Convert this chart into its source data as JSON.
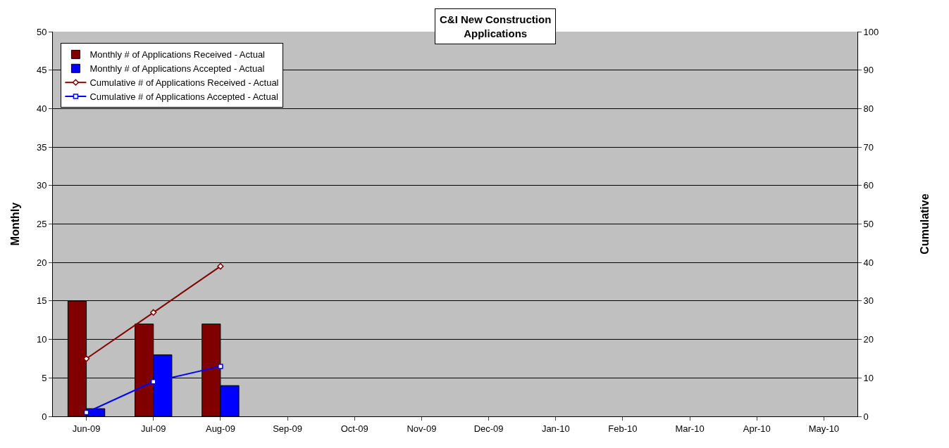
{
  "chart_data": {
    "type": "bar",
    "title": "C&I New Construction\nApplications",
    "categories": [
      "Jun-09",
      "Jul-09",
      "Aug-09",
      "Sep-09",
      "Oct-09",
      "Nov-09",
      "Dec-09",
      "Jan-10",
      "Feb-10",
      "Mar-10",
      "Apr-10",
      "May-10"
    ],
    "series": [
      {
        "name": "Monthly # of Applications Received - Actual",
        "color": "#800000",
        "values": [
          15,
          12,
          12,
          null,
          null,
          null,
          null,
          null,
          null,
          null,
          null,
          null
        ]
      },
      {
        "name": "Monthly # of Applications Accepted - Actual",
        "color": "#0000ff",
        "values": [
          1,
          8,
          4,
          null,
          null,
          null,
          null,
          null,
          null,
          null,
          null,
          null
        ]
      },
      {
        "name": "Cumulative # of Applications Received - Actual",
        "color": "#800000",
        "type": "line",
        "axis": "y2",
        "marker": "diamond",
        "values": [
          15,
          27,
          39,
          null,
          null,
          null,
          null,
          null,
          null,
          null,
          null,
          null
        ]
      },
      {
        "name": "Cumulative # of Applications Accepted - Actual",
        "color": "#0000ff",
        "type": "line",
        "axis": "y2",
        "marker": "square",
        "values": [
          1,
          9,
          13,
          null,
          null,
          null,
          null,
          null,
          null,
          null,
          null,
          null
        ]
      }
    ],
    "ylabel": "Monthly",
    "y2label": "Cumulative",
    "ylim": [
      0,
      50
    ],
    "yticks": [
      0,
      5,
      10,
      15,
      20,
      25,
      30,
      35,
      40,
      45,
      50
    ],
    "y2lim": [
      0,
      100
    ],
    "y2ticks": [
      0,
      10,
      20,
      30,
      40,
      50,
      60,
      70,
      80,
      90,
      100
    ],
    "grid": "y",
    "legend": "top left"
  }
}
